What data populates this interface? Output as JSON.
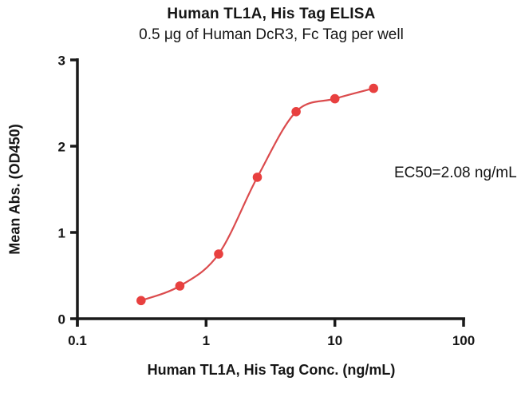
{
  "chart_data": {
    "type": "scatter",
    "title": "Human TL1A, His Tag ELISA",
    "subtitle": "0.5 μg of Human DcR3, Fc Tag per well",
    "xlabel": "Human TL1A, His Tag Conc. (ng/mL)",
    "ylabel": "Mean Abs. (OD450)",
    "annotation": "EC50=2.08 ng/mL",
    "xscale": "log",
    "xlim": [
      0.1,
      100
    ],
    "ylim": [
      0,
      3
    ],
    "xticks": [
      0.1,
      1,
      10,
      100
    ],
    "yticks": [
      0,
      1,
      2,
      3
    ],
    "grid": false,
    "legend": "none",
    "series": [
      {
        "marker": "circle",
        "fit": "sigmoidal-4PL",
        "x": [
          0.3125,
          0.625,
          1.25,
          2.5,
          5,
          10,
          20
        ],
        "y": [
          0.21,
          0.38,
          0.75,
          1.64,
          2.4,
          2.55,
          2.67
        ]
      }
    ],
    "colors": {
      "point": "#E8403F",
      "line": "#DB4B4D",
      "axis": "#1A1A1A",
      "text": "#161616"
    }
  }
}
